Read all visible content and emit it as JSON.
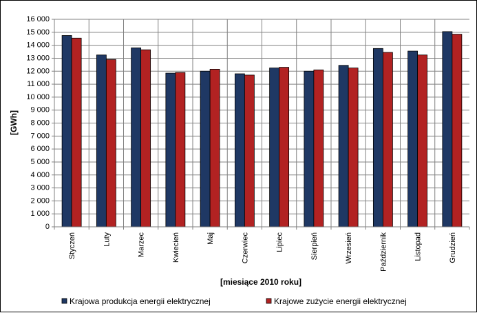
{
  "chart_data": {
    "type": "bar",
    "xlabel": "[miesiące 2010  roku]",
    "ylabel": "[GWh]",
    "ylim": [
      0,
      16000
    ],
    "ytick_step": 1000,
    "ytick_labels": [
      "0",
      "1 000",
      "2 000",
      "3 000",
      "4 000",
      "5 000",
      "6 000",
      "7 000",
      "8 000",
      "9 000",
      "10 000",
      "11 000",
      "12 000",
      "13 000",
      "14 000",
      "15 000",
      "16 000"
    ],
    "grid": true,
    "legend_position": "bottom",
    "categories": [
      "Styczeń",
      "Luty",
      "Marzec",
      "Kwiecień",
      "Maj",
      "Czerwiec",
      "Lipiec",
      "Sierpień",
      "Wrzesień",
      "Październik",
      "Listopad",
      "Grudzień"
    ],
    "series": [
      {
        "name": "Krajowa produkcja energii elektrycznej",
        "color": "#1f3864",
        "values": [
          14750,
          13250,
          13800,
          11850,
          12000,
          11800,
          12250,
          12000,
          12450,
          13750,
          13550,
          15050
        ]
      },
      {
        "name": "Krajowe zużycie energii elektrycznej",
        "color": "#b22222",
        "values": [
          14550,
          12900,
          13650,
          11900,
          12150,
          11700,
          12300,
          12100,
          12250,
          13450,
          13250,
          14850
        ]
      }
    ]
  }
}
